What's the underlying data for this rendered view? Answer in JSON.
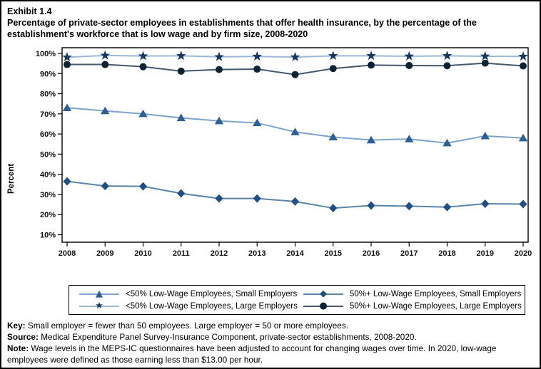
{
  "figure": {
    "exhibit_label": "Exhibit 1.4",
    "title": "Percentage of private-sector employees in establishments that offer health insurance, by the percentage of the establishment's workforce that is low wage and by firm size,  2008-2020"
  },
  "chart_data": {
    "type": "line",
    "x": [
      2008,
      2009,
      2010,
      2011,
      2012,
      2013,
      2014,
      2015,
      2016,
      2017,
      2018,
      2019,
      2020
    ],
    "ylabel": "Percent",
    "yticks": [
      10,
      20,
      30,
      40,
      50,
      60,
      70,
      80,
      90,
      100
    ],
    "ytick_suffix": "%",
    "ylim": [
      6.5,
      102.8
    ],
    "grid": false,
    "legend_position": "bottom",
    "series": [
      {
        "name": "<50% Low-Wage Employees, Small Employers",
        "marker": "triangle",
        "line_color": "#7ea4cd",
        "marker_color": "#2e5f94",
        "values": [
          73.0,
          71.5,
          70.0,
          68.0,
          66.5,
          65.5,
          61.0,
          58.5,
          57.0,
          57.5,
          55.5,
          59.0,
          58.0
        ]
      },
      {
        "name": "<50% Low-Wage Employees, Large Employers",
        "marker": "star",
        "line_color": "#9db8d6",
        "marker_color": "#17375e",
        "values": [
          98.1,
          99.0,
          98.7,
          98.8,
          98.3,
          98.5,
          98.2,
          98.8,
          98.8,
          98.6,
          98.8,
          98.6,
          98.5
        ]
      },
      {
        "name": "50%+ Low-Wage Employees, Small Employers",
        "marker": "diamond",
        "line_color": "#5b84a9",
        "marker_color": "#1f5081",
        "values": [
          36.5,
          34.2,
          34.0,
          30.5,
          28.0,
          28.0,
          26.5,
          23.2,
          24.5,
          24.2,
          23.7,
          25.4,
          25.2
        ]
      },
      {
        "name": "50%+ Low-Wage Employees, Large Employers",
        "marker": "circle",
        "line_color": "#46586c",
        "marker_color": "#0c2334",
        "values": [
          94.5,
          94.5,
          93.4,
          91.2,
          92.0,
          92.2,
          89.5,
          92.5,
          94.2,
          94.0,
          93.9,
          95.2,
          93.8
        ]
      }
    ]
  },
  "legend": {
    "items": [
      {
        "label": "<50% Low-Wage Employees, Small Employers",
        "glyph": "▲",
        "glyph_color": "#2e5f94",
        "line_color": "#7ea4cd"
      },
      {
        "label": "50%+ Low-Wage Employees, Small Employers",
        "glyph": "◆",
        "glyph_color": "#1f5081",
        "line_color": "#5b84a9"
      },
      {
        "label": "<50% Low-Wage Employees, Large Employers",
        "glyph": "★",
        "glyph_color": "#17375e",
        "line_color": "#9db8d6"
      },
      {
        "label": "50%+ Low-Wage Employees, Large Employers",
        "glyph": "●",
        "glyph_color": "#0c2334",
        "line_color": "#46586c"
      }
    ]
  },
  "footnotes": {
    "key_label": "Key:",
    "key_text": " Small employer = fewer than 50 employees. Large employer = 50 or more employees.",
    "source_label": "Source:",
    "source_text": " Medical Expenditure Panel Survey-Insurance Component, private-sector establishments, 2008-2020.",
    "note_label": "Note:",
    "note_text": " Wage levels in the MEPS-IC questionnaires have been adjusted to account for changing wages over time. In 2020, low-wage employees were defined as those earning less than $13.00 per hour."
  }
}
